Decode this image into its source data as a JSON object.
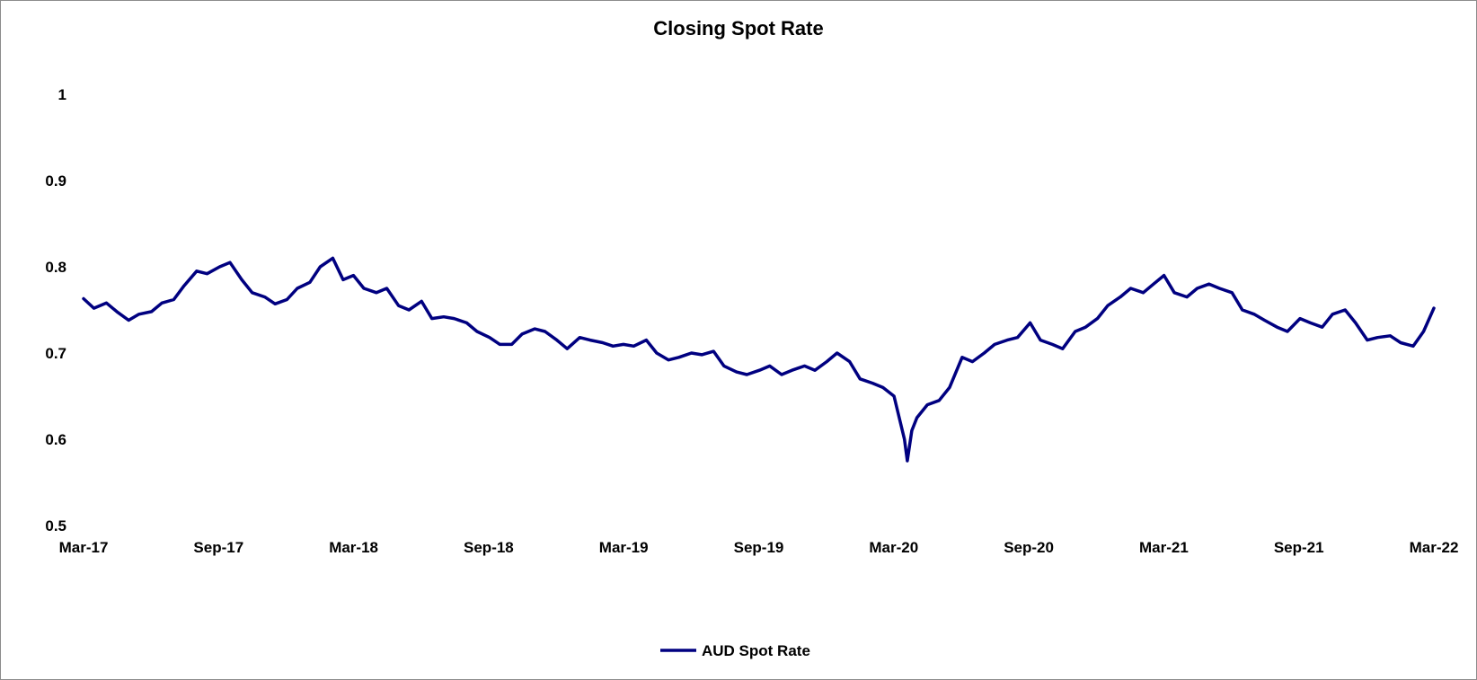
{
  "chart_data": {
    "type": "line",
    "title": "Closing Spot Rate",
    "xlabel": "",
    "ylabel": "",
    "ylim": [
      0.5,
      1.0
    ],
    "y_ticks": [
      "0.5",
      "0.6",
      "0.7",
      "0.8",
      "0.9",
      "1"
    ],
    "x_tick_labels": [
      "Mar-17",
      "Sep-17",
      "Mar-18",
      "Sep-18",
      "Mar-19",
      "Sep-19",
      "Mar-20",
      "Sep-20",
      "Mar-21",
      "Sep-21",
      "Mar-22"
    ],
    "x_start": "2017-03",
    "x_end": "2022-03",
    "grid": false,
    "legend_position": "bottom-center",
    "line_color": "#000080",
    "series": [
      {
        "name": "AUD Spot Rate",
        "x": [
          "2017-03-01",
          "2017-03-15",
          "2017-04-01",
          "2017-04-15",
          "2017-05-01",
          "2017-05-15",
          "2017-06-01",
          "2017-06-15",
          "2017-07-01",
          "2017-07-15",
          "2017-08-01",
          "2017-08-15",
          "2017-09-01",
          "2017-09-15",
          "2017-10-01",
          "2017-10-15",
          "2017-11-01",
          "2017-11-15",
          "2017-12-01",
          "2017-12-15",
          "2018-01-01",
          "2018-01-15",
          "2018-02-01",
          "2018-02-15",
          "2018-03-01",
          "2018-03-15",
          "2018-04-01",
          "2018-04-15",
          "2018-05-01",
          "2018-05-15",
          "2018-06-01",
          "2018-06-15",
          "2018-07-01",
          "2018-07-15",
          "2018-08-01",
          "2018-08-15",
          "2018-09-01",
          "2018-09-15",
          "2018-10-01",
          "2018-10-15",
          "2018-11-01",
          "2018-11-15",
          "2018-12-01",
          "2018-12-15",
          "2019-01-01",
          "2019-01-15",
          "2019-02-01",
          "2019-02-15",
          "2019-03-01",
          "2019-03-15",
          "2019-04-01",
          "2019-04-15",
          "2019-05-01",
          "2019-05-15",
          "2019-06-01",
          "2019-06-15",
          "2019-07-01",
          "2019-07-15",
          "2019-08-01",
          "2019-08-15",
          "2019-09-01",
          "2019-09-15",
          "2019-10-01",
          "2019-10-15",
          "2019-11-01",
          "2019-11-15",
          "2019-12-01",
          "2019-12-15",
          "2020-01-01",
          "2020-01-15",
          "2020-02-01",
          "2020-02-15",
          "2020-03-01",
          "2020-03-08",
          "2020-03-15",
          "2020-03-19",
          "2020-03-25",
          "2020-04-01",
          "2020-04-15",
          "2020-05-01",
          "2020-05-15",
          "2020-06-01",
          "2020-06-15",
          "2020-07-01",
          "2020-07-15",
          "2020-08-01",
          "2020-08-15",
          "2020-09-01",
          "2020-09-15",
          "2020-10-01",
          "2020-10-15",
          "2020-11-01",
          "2020-11-15",
          "2020-12-01",
          "2020-12-15",
          "2021-01-01",
          "2021-01-15",
          "2021-02-01",
          "2021-02-15",
          "2021-03-01",
          "2021-03-15",
          "2021-04-01",
          "2021-04-15",
          "2021-05-01",
          "2021-05-15",
          "2021-06-01",
          "2021-06-15",
          "2021-07-01",
          "2021-07-15",
          "2021-08-01",
          "2021-08-15",
          "2021-09-01",
          "2021-09-15",
          "2021-10-01",
          "2021-10-15",
          "2021-11-01",
          "2021-11-15",
          "2021-12-01",
          "2021-12-15",
          "2022-01-01",
          "2022-01-15",
          "2022-02-01",
          "2022-02-15",
          "2022-03-01"
        ],
        "values": [
          0.763,
          0.752,
          0.758,
          0.748,
          0.738,
          0.745,
          0.748,
          0.758,
          0.762,
          0.778,
          0.795,
          0.792,
          0.8,
          0.805,
          0.785,
          0.77,
          0.765,
          0.757,
          0.762,
          0.775,
          0.782,
          0.8,
          0.81,
          0.785,
          0.79,
          0.775,
          0.77,
          0.775,
          0.755,
          0.75,
          0.76,
          0.74,
          0.742,
          0.74,
          0.735,
          0.725,
          0.718,
          0.71,
          0.71,
          0.722,
          0.728,
          0.725,
          0.715,
          0.705,
          0.718,
          0.715,
          0.712,
          0.708,
          0.71,
          0.708,
          0.715,
          0.7,
          0.692,
          0.695,
          0.7,
          0.698,
          0.702,
          0.685,
          0.678,
          0.675,
          0.68,
          0.685,
          0.675,
          0.68,
          0.685,
          0.68,
          0.69,
          0.7,
          0.69,
          0.67,
          0.665,
          0.66,
          0.65,
          0.625,
          0.6,
          0.575,
          0.61,
          0.625,
          0.64,
          0.645,
          0.66,
          0.695,
          0.69,
          0.7,
          0.71,
          0.715,
          0.718,
          0.735,
          0.715,
          0.71,
          0.705,
          0.725,
          0.73,
          0.74,
          0.755,
          0.765,
          0.775,
          0.77,
          0.78,
          0.79,
          0.77,
          0.765,
          0.775,
          0.78,
          0.775,
          0.77,
          0.75,
          0.745,
          0.738,
          0.73,
          0.725,
          0.74,
          0.735,
          0.73,
          0.745,
          0.75,
          0.735,
          0.715,
          0.718,
          0.72,
          0.712,
          0.708,
          0.725,
          0.752
        ]
      }
    ]
  }
}
